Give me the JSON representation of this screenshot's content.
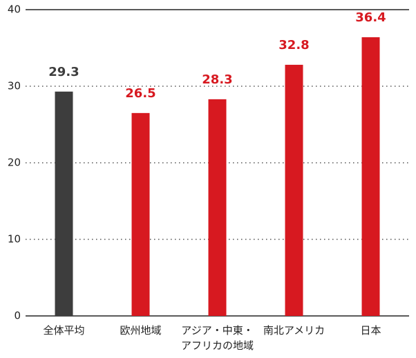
{
  "chart_data": {
    "type": "bar",
    "categories": [
      "全体平均",
      "欧州地域",
      "アジア・中東・アフリカの地域",
      "南北アメリカ",
      "日本"
    ],
    "values": [
      29.3,
      26.5,
      28.3,
      32.8,
      36.4
    ],
    "colors": [
      "#3d3d3d",
      "#d71920",
      "#d71920",
      "#d71920",
      "#d71920"
    ],
    "ylim": [
      0,
      40
    ],
    "yticks": [
      0,
      10,
      20,
      30,
      40
    ],
    "grid": true
  }
}
